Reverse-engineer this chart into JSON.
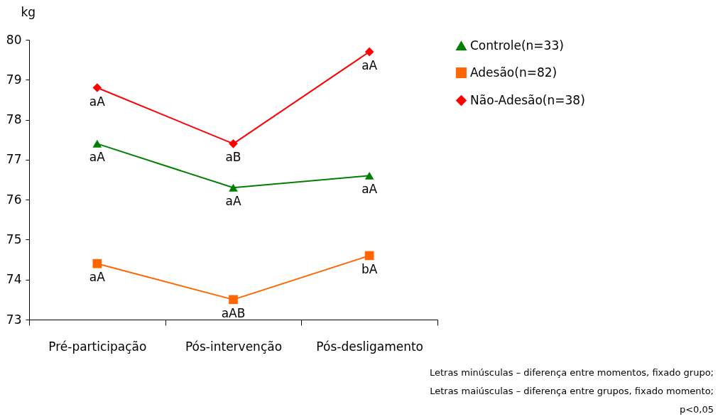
{
  "chart_data": {
    "type": "line",
    "ylabel": "kg",
    "categories": [
      "Pré-participação",
      "Pós-intervenção",
      "Pós-desligamento"
    ],
    "series": [
      {
        "name": "Controle(n=33)",
        "color": "#008000",
        "marker": "triangle",
        "values": [
          77.4,
          76.3,
          76.6
        ],
        "value_labels": [
          "aA",
          "aA",
          "aA"
        ]
      },
      {
        "name": "Adesão(n=82)",
        "color": "#ff6600",
        "marker": "square",
        "values": [
          74.4,
          73.5,
          74.6
        ],
        "value_labels": [
          "aA",
          "aAB",
          "bA"
        ]
      },
      {
        "name": "Não-Adesão(n=38)",
        "color": "#ff0000",
        "marker": "diamond",
        "values": [
          78.8,
          77.4,
          79.7
        ],
        "value_labels": [
          "aA",
          "aB",
          "aA"
        ]
      }
    ],
    "ylim": [
      73,
      80
    ],
    "yticks": [
      73,
      74,
      75,
      76,
      77,
      78,
      79,
      80
    ],
    "grid": false,
    "legend": "right",
    "annotations": [
      "Letras minúsculas – diferença entre momentos, fixado grupo;",
      "Letras maiúsculas – diferença entre grupos, fixado momento;",
      "p<0,05"
    ]
  }
}
